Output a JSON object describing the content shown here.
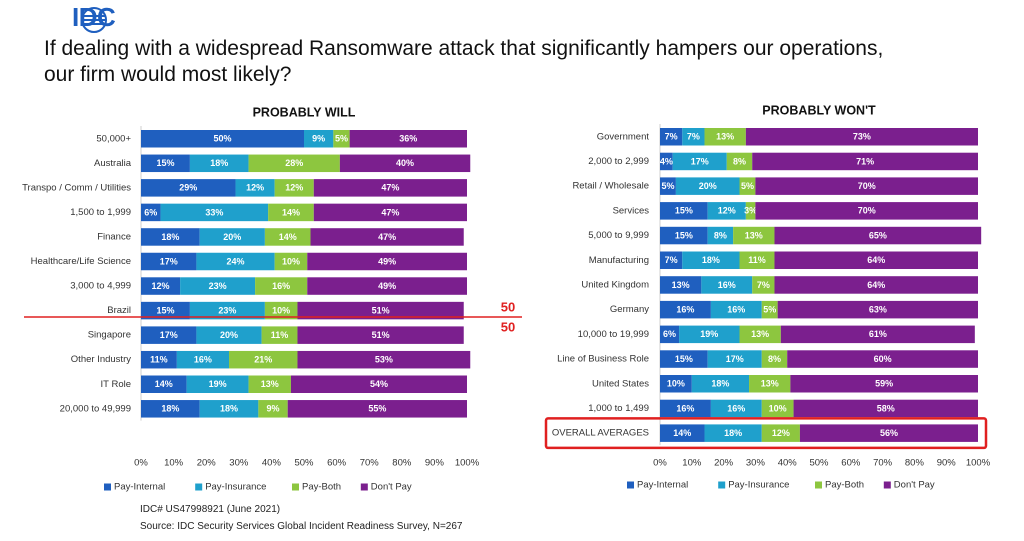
{
  "header": {
    "logo_text": "IDC",
    "title_line1": "If dealing with a widespread Ransomware attack that significantly hampers our operations,",
    "title_line2": "our firm would most likely?"
  },
  "footer": {
    "doc_id": "IDC# US47998921  (June 2021)",
    "source": "Source: IDC Security Services Global Incident Readiness Survey, N=267"
  },
  "annotations": {
    "divider_upper": "50",
    "divider_lower": "50"
  },
  "colors": {
    "Pay-Internal": "#1f5fbf",
    "Pay-Insurance": "#1fa0cc",
    "Pay-Both": "#8dc63f",
    "Don't Pay": "#7b1f8e",
    "divider": "#e02020"
  },
  "chart_data": [
    {
      "type": "bar",
      "orientation": "horizontal",
      "stacked": true,
      "title": "PROBABLY WILL",
      "categories": [
        "50,000+",
        "Australia",
        "Transpo / Comm / Utilities",
        "1,500 to 1,999",
        "Finance",
        "Healthcare/Life Science",
        "3,000 to 4,999",
        "Brazil",
        "Singapore",
        "Other Industry",
        "IT Role",
        "20,000 to 49,999"
      ],
      "series": [
        {
          "name": "Pay-Internal",
          "values": [
            50,
            15,
            29,
            6,
            18,
            17,
            12,
            15,
            17,
            11,
            14,
            18
          ]
        },
        {
          "name": "Pay-Insurance",
          "values": [
            9,
            18,
            12,
            33,
            20,
            24,
            23,
            23,
            20,
            16,
            19,
            18
          ]
        },
        {
          "name": "Pay-Both",
          "values": [
            5,
            28,
            12,
            14,
            14,
            10,
            16,
            10,
            11,
            21,
            13,
            9
          ]
        },
        {
          "name": "Don't Pay",
          "values": [
            36,
            40,
            47,
            47,
            47,
            49,
            49,
            51,
            51,
            53,
            54,
            55
          ]
        }
      ],
      "xlim": [
        0,
        100
      ],
      "xticks": [
        "0%",
        "10%",
        "20%",
        "30%",
        "40%",
        "50%",
        "60%",
        "70%",
        "80%",
        "90%",
        "100%"
      ],
      "legend": [
        "Pay-Internal",
        "Pay-Insurance",
        "Pay-Both",
        "Don't Pay"
      ],
      "legend_position": "bottom"
    },
    {
      "type": "bar",
      "orientation": "horizontal",
      "stacked": true,
      "title": "PROBABLY WON'T",
      "categories": [
        "Government",
        "2,000 to 2,999",
        "Retail / Wholesale",
        "Services",
        "5,000 to 9,999",
        "Manufacturing",
        "United Kingdom",
        "Germany",
        "10,000 to 19,999",
        "Line of Business Role",
        "United States",
        "1,000 to 1,499",
        "OVERALL AVERAGES"
      ],
      "series": [
        {
          "name": "Pay-Internal",
          "values": [
            7,
            4,
            5,
            15,
            15,
            7,
            13,
            16,
            6,
            15,
            10,
            16,
            14
          ]
        },
        {
          "name": "Pay-Insurance",
          "values": [
            7,
            17,
            20,
            12,
            8,
            18,
            16,
            16,
            19,
            17,
            18,
            16,
            18
          ]
        },
        {
          "name": "Pay-Both",
          "values": [
            13,
            8,
            5,
            3,
            13,
            11,
            7,
            5,
            13,
            8,
            13,
            10,
            12
          ]
        },
        {
          "name": "Don't Pay",
          "values": [
            73,
            71,
            70,
            70,
            65,
            64,
            64,
            63,
            61,
            60,
            59,
            58,
            56
          ]
        }
      ],
      "highlighted_category": "OVERALL AVERAGES",
      "xlim": [
        0,
        100
      ],
      "xticks": [
        "0%",
        "10%",
        "20%",
        "30%",
        "40%",
        "50%",
        "60%",
        "70%",
        "80%",
        "90%",
        "100%"
      ],
      "legend": [
        "Pay-Internal",
        "Pay-Insurance",
        "Pay-Both",
        "Don't Pay"
      ],
      "legend_position": "bottom"
    }
  ]
}
